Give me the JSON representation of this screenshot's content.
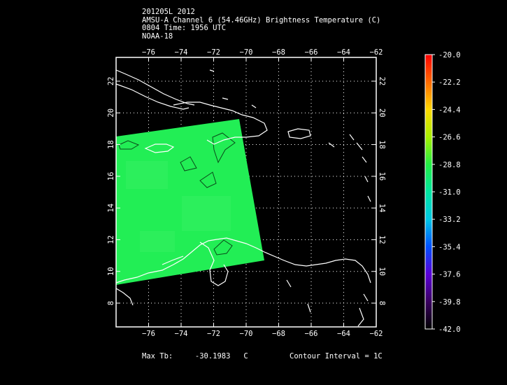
{
  "header": {
    "line1": "201205L 2012",
    "line2": "AMSU-A Channel 6 (54.46GHz) Brightness Temperature (C)",
    "line3": "0804 Time: 1956 UTC",
    "line4": "NOAA-18"
  },
  "map": {
    "lon_ticks": [
      -76,
      -74,
      -72,
      -70,
      -68,
      -66,
      -64,
      -62
    ],
    "lat_ticks": [
      8,
      10,
      12,
      14,
      16,
      18,
      20,
      22
    ],
    "lon_labels": [
      "−76",
      "−74",
      "−72",
      "−70",
      "−68",
      "−66",
      "−64",
      "−62"
    ],
    "lat_labels": [
      "8",
      "10",
      "12",
      "14",
      "16",
      "18",
      "20",
      "22"
    ],
    "lon_range": [
      -78,
      -62
    ],
    "lat_range": [
      6.5,
      23.5
    ],
    "swath_color": "#22ee55",
    "coast_color": "#ffffff",
    "grid": "dotted"
  },
  "colorbar": {
    "labels": [
      "-20.0",
      "-22.2",
      "-24.4",
      "-26.6",
      "-28.8",
      "-31.0",
      "-33.2",
      "-35.4",
      "-37.6",
      "-39.8",
      "-42.0"
    ],
    "range": [
      -42.0,
      -20.0
    ]
  },
  "footer": {
    "max_label": "Max Tb:",
    "max_value": "-30.1983",
    "max_unit": "C",
    "contour": "Contour Interval = 1C"
  }
}
